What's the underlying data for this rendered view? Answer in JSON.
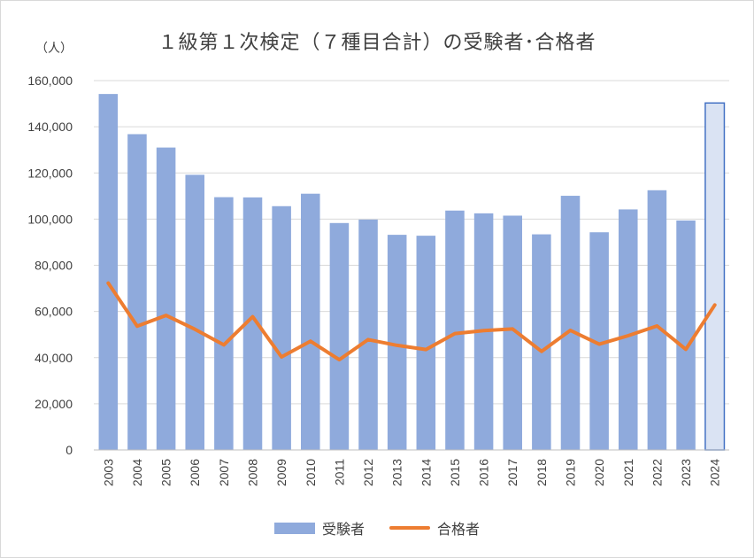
{
  "chart_data": {
    "type": "bar",
    "title": "１級第１次検定（７種目合計）の受験者･合格者",
    "unit_label": "（人）",
    "categories": [
      "2003",
      "2004",
      "2005",
      "2006",
      "2007",
      "2008",
      "2009",
      "2010",
      "2011",
      "2012",
      "2013",
      "2014",
      "2015",
      "2016",
      "2017",
      "2018",
      "2019",
      "2020",
      "2021",
      "2022",
      "2023",
      "2024"
    ],
    "series": [
      {
        "name": "受験者",
        "kind": "bar",
        "color": "#8faadc",
        "highlight_color": "#dae3f3",
        "highlight_border": "#4472c4",
        "highlight_index": 21,
        "values": [
          154200,
          136800,
          131000,
          119200,
          109500,
          109400,
          105600,
          111000,
          98300,
          99800,
          93200,
          92800,
          103700,
          102500,
          101500,
          93400,
          110100,
          94300,
          104200,
          112500,
          99400,
          150300
        ]
      },
      {
        "name": "合格者",
        "kind": "line",
        "color": "#ed7d31",
        "values": [
          72300,
          53600,
          58300,
          52300,
          45500,
          57700,
          40300,
          47100,
          39100,
          47800,
          45300,
          43500,
          50400,
          51700,
          52400,
          42700,
          51800,
          45800,
          49500,
          53700,
          43600,
          62800
        ]
      }
    ],
    "ylim": [
      0,
      160000
    ],
    "yticks": [
      0,
      20000,
      40000,
      60000,
      80000,
      100000,
      120000,
      140000,
      160000
    ],
    "ytick_labels": [
      "0",
      "20,000",
      "40,000",
      "60,000",
      "80,000",
      "100,000",
      "120,000",
      "140,000",
      "160,000"
    ],
    "xlabel": "",
    "ylabel": "",
    "grid": true,
    "legend_position": "bottom"
  }
}
